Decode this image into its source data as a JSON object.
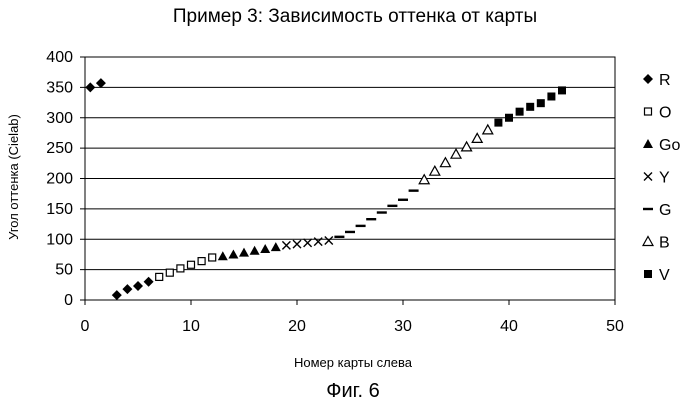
{
  "chart_data": {
    "type": "scatter",
    "title": "Пример 3: Зависимость оттенка от карты",
    "xlabel": "Номер карты слева",
    "ylabel": "Угол оттенка (Cielab)",
    "xlim": [
      0,
      50
    ],
    "ylim": [
      0,
      400
    ],
    "x_ticks": [
      "0",
      "10",
      "20",
      "30",
      "40",
      "50"
    ],
    "y_ticks": [
      "0",
      "50",
      "100",
      "150",
      "200",
      "250",
      "300",
      "350",
      "400"
    ],
    "grid": "horizontal",
    "legend": "right",
    "series": [
      {
        "name": "R",
        "marker": "diamond",
        "x": [
          0.5,
          1.5,
          3,
          4,
          5,
          6
        ],
        "y": [
          350,
          357,
          8,
          18,
          23,
          30
        ]
      },
      {
        "name": "O",
        "marker": "square-open",
        "x": [
          7,
          8,
          9,
          10,
          11,
          12
        ],
        "y": [
          38,
          45,
          52,
          58,
          64,
          70
        ]
      },
      {
        "name": "Go",
        "marker": "triangle",
        "x": [
          13,
          14,
          15,
          16,
          17,
          18
        ],
        "y": [
          72,
          75,
          78,
          81,
          84,
          87
        ]
      },
      {
        "name": "Y",
        "marker": "x",
        "x": [
          19,
          20,
          21,
          22,
          23
        ],
        "y": [
          90,
          92,
          94,
          96,
          98
        ]
      },
      {
        "name": "G",
        "marker": "dash",
        "x": [
          24,
          25,
          26,
          27,
          28,
          29,
          30,
          31
        ],
        "y": [
          104,
          112,
          122,
          133,
          144,
          155,
          165,
          180
        ]
      },
      {
        "name": "B",
        "marker": "triangle-open",
        "x": [
          32,
          33,
          34,
          35,
          36,
          37,
          38
        ],
        "y": [
          198,
          212,
          226,
          240,
          252,
          266,
          280
        ]
      },
      {
        "name": "V",
        "marker": "square",
        "x": [
          39,
          40,
          41,
          42,
          43,
          44,
          45
        ],
        "y": [
          292,
          300,
          310,
          318,
          324,
          335,
          345
        ]
      }
    ]
  },
  "caption": "Фиг. 6",
  "colors": {
    "marker": "#000000",
    "grid": "#000000",
    "background": "#ffffff"
  }
}
